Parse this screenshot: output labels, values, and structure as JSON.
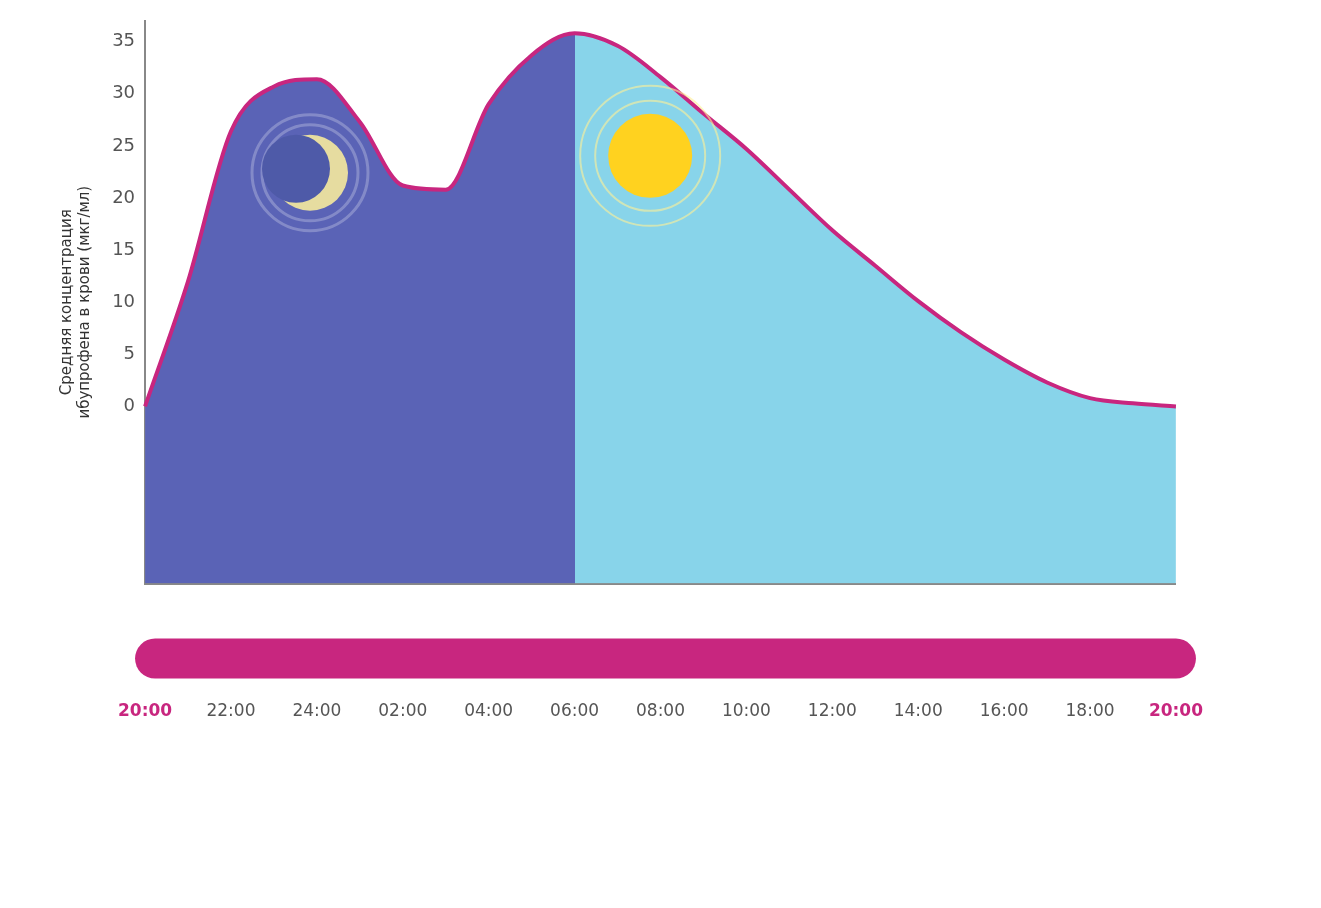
{
  "chart_data": {
    "type": "line",
    "ylabel": "Средняя концентрация ибупрофена в крови (мкг/мл)",
    "categories": [
      "20:00",
      null,
      "22:00",
      null,
      "24:00",
      null,
      "02:00",
      null,
      "04:00",
      null,
      "06:00",
      null,
      "08:00",
      null,
      "10:00",
      null,
      "12:00",
      null,
      "14:00",
      null,
      "16:00",
      null,
      "18:00",
      null,
      "20:00"
    ],
    "values": [
      0,
      12,
      26.4,
      30.7,
      31.4,
      27.3,
      21.2,
      20.8,
      29,
      33.7,
      35.8,
      34.6,
      31.6,
      28.1,
      24.7,
      20.8,
      16.9,
      13.5,
      10.1,
      7.1,
      4.5,
      2.3,
      0.8,
      0.3,
      0
    ],
    "color": "#c8267f",
    "ylim": [
      -17,
      37
    ],
    "yticks": [
      0,
      5,
      10,
      15,
      20,
      25,
      30,
      35
    ],
    "grid": false
  }
}
